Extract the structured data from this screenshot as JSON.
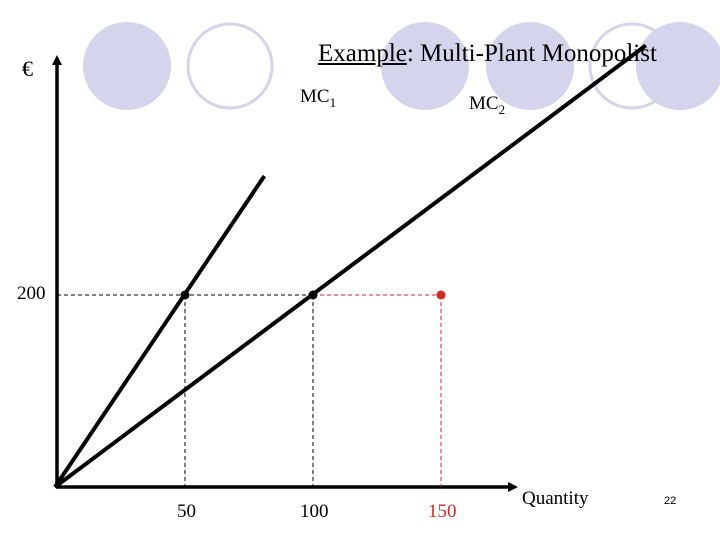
{
  "slide": {
    "title_underlined": "Example",
    "title_rest": ":  Multi-Plant Monopolist",
    "y_axis_symbol": "€",
    "page_number": "22"
  },
  "colors": {
    "circle": "#d4d4ec",
    "highlight": "#d9261c",
    "ink": "#000000"
  },
  "chart_data": {
    "type": "line",
    "title": "Example:  Multi-Plant Monopolist",
    "xlabel": "Quantity",
    "ylabel": "€",
    "xticks": [
      {
        "value": 50,
        "label": "50",
        "highlight": false
      },
      {
        "value": 100,
        "label": "100",
        "highlight": false
      },
      {
        "value": 150,
        "label": "150",
        "highlight": true
      }
    ],
    "yticks": [
      {
        "value": 200,
        "label": "200"
      }
    ],
    "series": [
      {
        "name": "MC",
        "subscript": "1",
        "x": [
          0,
          50
        ],
        "y": [
          0,
          200
        ]
      },
      {
        "name": "MC",
        "subscript": "2",
        "x": [
          0,
          100
        ],
        "y": [
          0,
          200
        ]
      }
    ],
    "points": [
      {
        "x": 50,
        "y": 200,
        "highlight": false
      },
      {
        "x": 100,
        "y": 200,
        "highlight": false
      },
      {
        "x": 150,
        "y": 200,
        "highlight": true
      }
    ]
  }
}
